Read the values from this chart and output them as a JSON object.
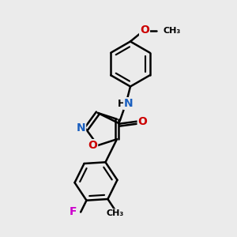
{
  "bg_color": "#ebebeb",
  "bond_color": "#000000",
  "bond_width": 1.8,
  "atom_colors": {
    "N": "#1a5fbf",
    "O": "#cc0000",
    "F": "#cc00cc",
    "C": "#000000",
    "H": "#000000"
  },
  "font_size": 10,
  "fig_size": [
    3.0,
    3.0
  ],
  "dpi": 100
}
